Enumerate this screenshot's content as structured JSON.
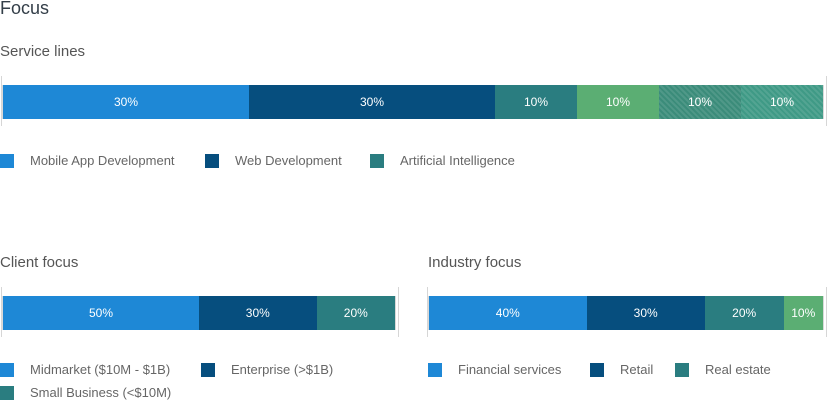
{
  "title": "Focus",
  "service": {
    "title": "Service lines",
    "segments": [
      {
        "label": "30%",
        "value": 30,
        "color": "#1e88d6"
      },
      {
        "label": "30%",
        "value": 30,
        "color": "#064e7e"
      },
      {
        "label": "10%",
        "value": 10,
        "color": "#2a7d80"
      },
      {
        "label": "10%",
        "value": 10,
        "color": "#5bae73"
      },
      {
        "label": "10%",
        "value": 10,
        "color": "#3b8c7a",
        "pattern": "hatched"
      },
      {
        "label": "10%",
        "value": 10,
        "color": "#3f9a86",
        "pattern": "hatched"
      }
    ],
    "legend": [
      {
        "label": "Mobile App Development",
        "color": "#1e88d6"
      },
      {
        "label": "Web Development",
        "color": "#064e7e"
      },
      {
        "label": "Artificial Intelligence",
        "color": "#2a7d80"
      }
    ]
  },
  "client": {
    "title": "Client focus",
    "segments": [
      {
        "label": "50%",
        "value": 50,
        "color": "#1e88d6"
      },
      {
        "label": "30%",
        "value": 30,
        "color": "#064e7e"
      },
      {
        "label": "20%",
        "value": 20,
        "color": "#2a7d80"
      }
    ],
    "legend": [
      {
        "label": "Midmarket ($10M - $1B)",
        "color": "#1e88d6"
      },
      {
        "label": "Enterprise (>$1B)",
        "color": "#064e7e"
      },
      {
        "label": "Small Business (<$10M)",
        "color": "#2a7d80"
      }
    ]
  },
  "industry": {
    "title": "Industry focus",
    "segments": [
      {
        "label": "40%",
        "value": 40,
        "color": "#1e88d6"
      },
      {
        "label": "30%",
        "value": 30,
        "color": "#064e7e"
      },
      {
        "label": "20%",
        "value": 20,
        "color": "#2a7d80"
      },
      {
        "label": "10%",
        "value": 10,
        "color": "#5bae73"
      }
    ],
    "legend": [
      {
        "label": "Financial services",
        "color": "#1e88d6"
      },
      {
        "label": "Retail",
        "color": "#064e7e"
      },
      {
        "label": "Real estate",
        "color": "#2a7d80"
      }
    ]
  }
}
